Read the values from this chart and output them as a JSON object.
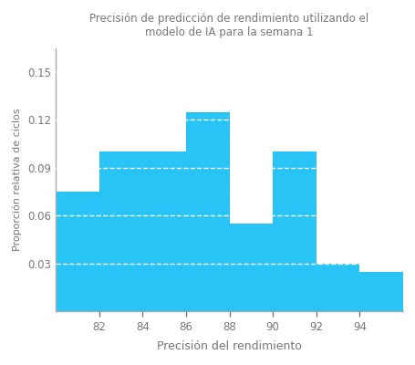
{
  "title_line1": "Precisión de predicción de rendimiento utilizando el",
  "title_line2": "modelo de IA para la semana 1",
  "xlabel": "Precisión del rendimiento",
  "ylabel": "Proporción relativa de ciclos",
  "bar_color": "#29c4f6",
  "background_color": "#ffffff",
  "plot_bg_color": "#ffffff",
  "title_color": "#777777",
  "axis_color": "#aaaaaa",
  "grid_color": "#ffffff",
  "tick_color": "#777777",
  "bins": [
    80,
    82,
    84,
    86,
    88,
    90,
    92,
    94,
    96
  ],
  "heights": [
    0.075,
    0.1,
    0.1,
    0.125,
    0.055,
    0.1,
    0.03,
    0.025
  ],
  "xlim": [
    80,
    96
  ],
  "ylim": [
    0,
    0.165
  ],
  "yticks": [
    0.03,
    0.06,
    0.09,
    0.12,
    0.15
  ],
  "xticks": [
    82,
    84,
    86,
    88,
    90,
    92,
    94
  ],
  "figsize": [
    4.56,
    4.0
  ],
  "dpi": 100
}
